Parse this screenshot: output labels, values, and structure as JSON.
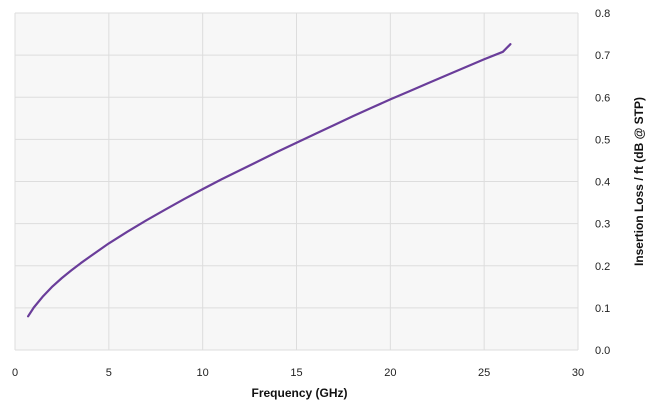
{
  "chart_data": {
    "type": "line",
    "title": "",
    "xlabel": "Frequency (GHz)",
    "ylabel": "Insertion Loss / ft (dB @ STP)",
    "xlim": [
      0,
      30
    ],
    "ylim": [
      0,
      0.8
    ],
    "x_ticks": [
      "0",
      "5",
      "10",
      "15",
      "20",
      "25",
      "30"
    ],
    "y_ticks": [
      "0.0",
      "0.1",
      "0.2",
      "0.3",
      "0.4",
      "0.5",
      "0.6",
      "0.7",
      "0.8"
    ],
    "y_axis_side": "right",
    "grid": true,
    "legend": "none",
    "colors": {
      "plot_background": "#f7f7f7",
      "grid": "#dddddd",
      "line": "#6a3d9a"
    },
    "series": [
      {
        "x": [
          0.7,
          1,
          1.5,
          2,
          2.5,
          3,
          3.5,
          4,
          5,
          6,
          7,
          8,
          9,
          10,
          11,
          12,
          13,
          14,
          15,
          16,
          17,
          18,
          19,
          20,
          21,
          22,
          23,
          24,
          25,
          26,
          26.4
        ],
        "y": [
          0.08,
          0.101,
          0.128,
          0.151,
          0.171,
          0.189,
          0.206,
          0.222,
          0.253,
          0.281,
          0.308,
          0.333,
          0.358,
          0.382,
          0.405,
          0.427,
          0.449,
          0.471,
          0.492,
          0.513,
          0.534,
          0.555,
          0.575,
          0.595,
          0.614,
          0.633,
          0.652,
          0.671,
          0.69,
          0.708,
          0.726
        ]
      }
    ]
  }
}
